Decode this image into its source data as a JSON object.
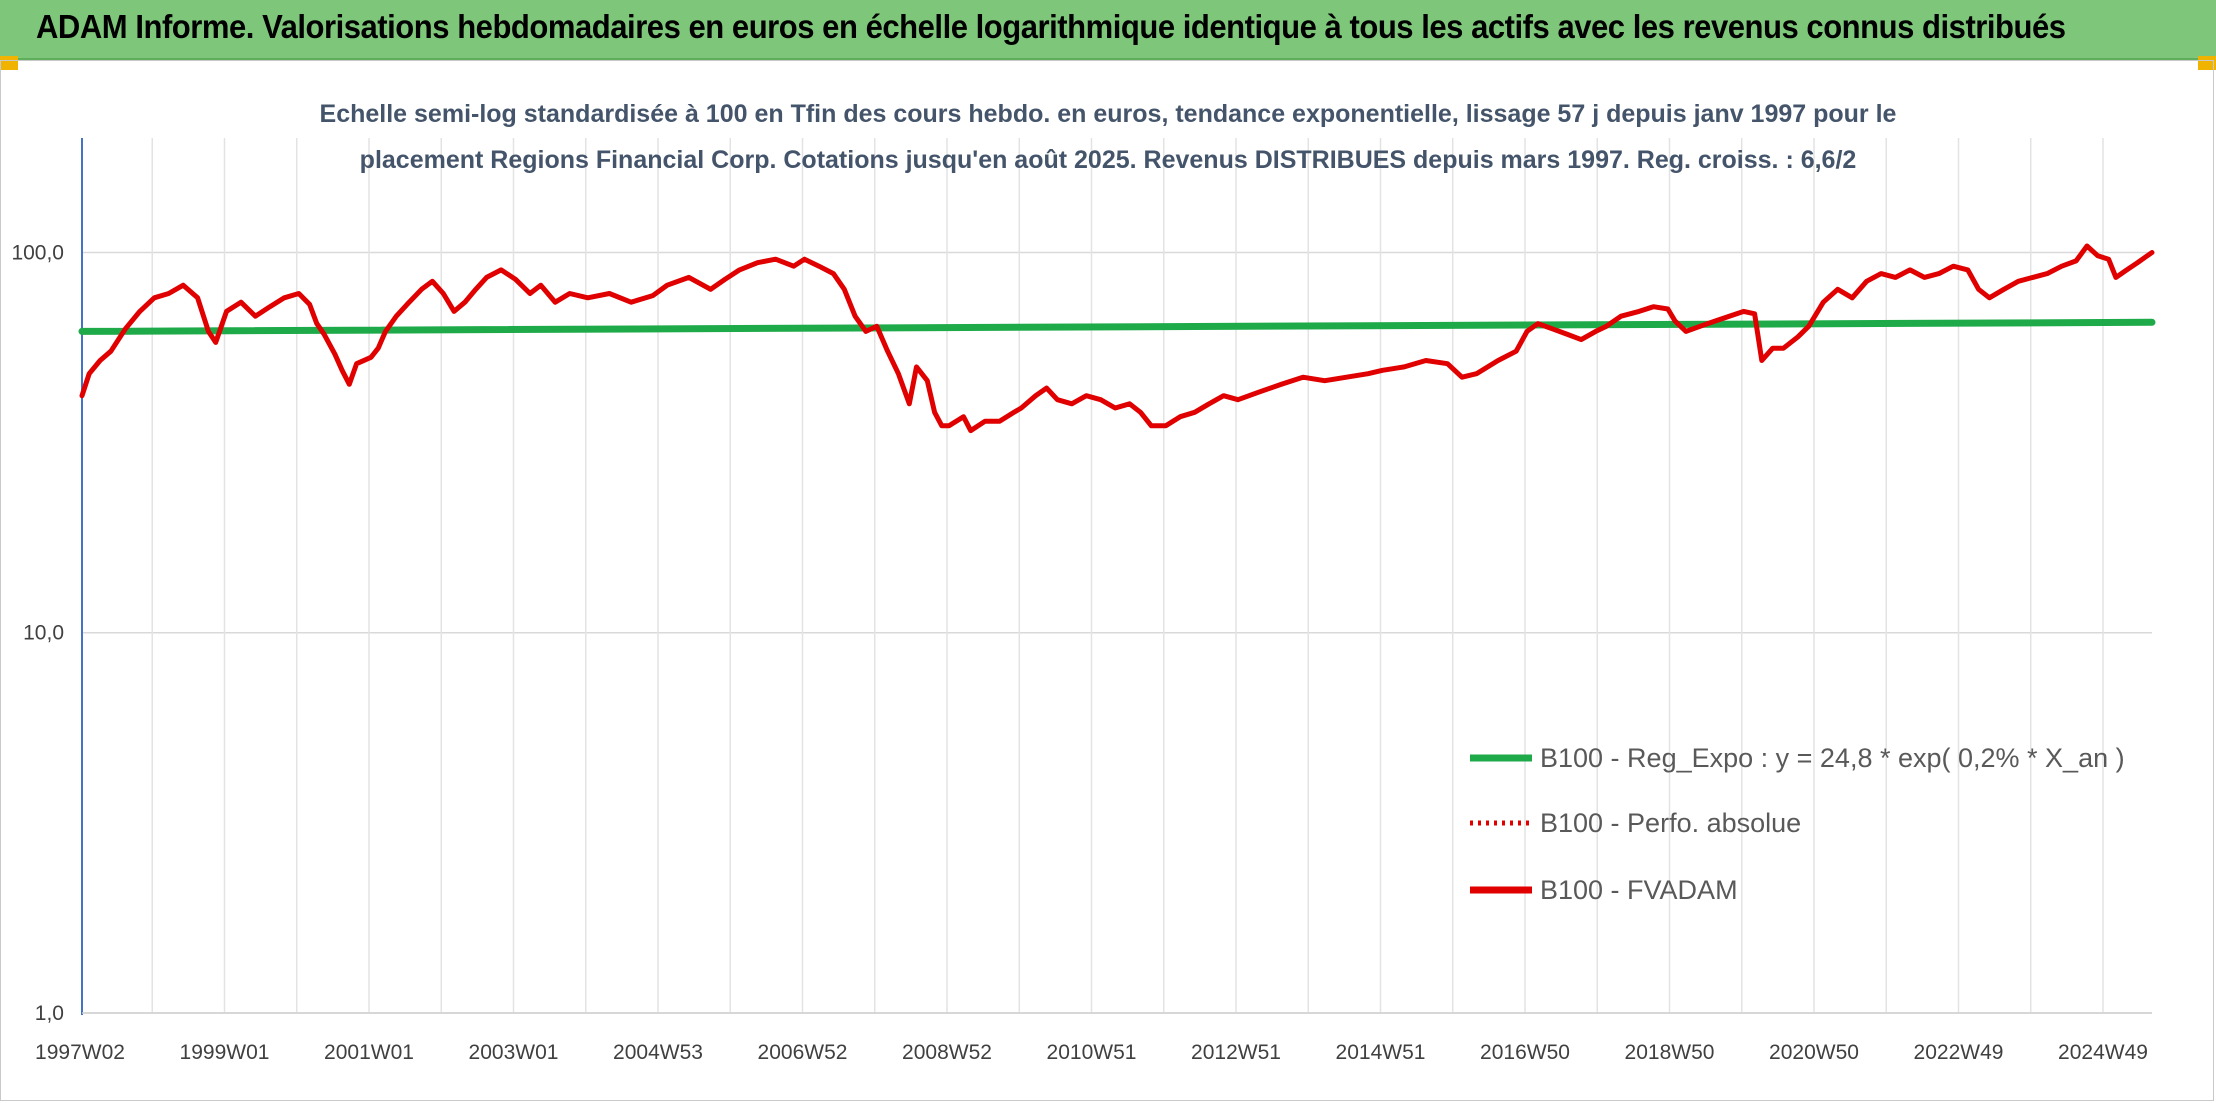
{
  "header": {
    "title": "ADAM Informe. Valorisations hebdomadaires en euros en échelle logarithmique identique à tous les actifs avec les revenus connus distribués",
    "background": "#7ec77a",
    "corner_accent": "#f0b400"
  },
  "chart_data": {
    "type": "line",
    "title_lines": [
      "Echelle semi-log standardisée à 100 en Tfin des cours hebdo. en euros, tendance exponentielle, lissage 57 j depuis janv 1997 pour le",
      "placement Regions Financial Corp. Cotations jusqu'en août 2025. Revenus DISTRIBUES depuis mars 1997. Reg. croiss. : 6,6/2"
    ],
    "y_scale": "log",
    "ylim": [
      1,
      200
    ],
    "y_ticks": [
      {
        "value": 1,
        "label": "1,0"
      },
      {
        "value": 10,
        "label": "10,0"
      },
      {
        "value": 100,
        "label": "100,0"
      }
    ],
    "x_range": [
      1997.0,
      2025.65
    ],
    "x_tick_labels": [
      "1997W02",
      "1999W01",
      "2001W01",
      "2003W01",
      "2004W53",
      "2006W52",
      "2008W52",
      "2010W51",
      "2012W51",
      "2014W51",
      "2016W50",
      "2018W50",
      "2020W50",
      "2022W49",
      "2024W49"
    ],
    "grid": "vertical gridlines between tick labels and horizontal gridlines at 1, 10, 100",
    "legend_position": "bottom-right",
    "series": [
      {
        "name": "B100 - Reg_Expo : y = 24,8 * exp( 0,2% *  X_an )",
        "color": "#1faa4a",
        "style": "solid",
        "points": [
          [
            1997.0,
            62.0
          ],
          [
            2025.65,
            65.5
          ]
        ]
      },
      {
        "name": "B100 - Perfo. absolue",
        "color": "#e00000",
        "style": "dotted",
        "points": []
      },
      {
        "name": "B100 - FVADAM",
        "color": "#e00000",
        "style": "solid",
        "points": [
          [
            1997.0,
            42
          ],
          [
            1997.1,
            48
          ],
          [
            1997.25,
            52
          ],
          [
            1997.4,
            55
          ],
          [
            1997.6,
            63
          ],
          [
            1997.8,
            70
          ],
          [
            1998.0,
            76
          ],
          [
            1998.2,
            78
          ],
          [
            1998.4,
            82
          ],
          [
            1998.6,
            76
          ],
          [
            1998.75,
            62
          ],
          [
            1998.85,
            58
          ],
          [
            1999.0,
            70
          ],
          [
            1999.2,
            74
          ],
          [
            1999.4,
            68
          ],
          [
            1999.6,
            72
          ],
          [
            1999.8,
            76
          ],
          [
            2000.0,
            78
          ],
          [
            2000.15,
            73
          ],
          [
            2000.25,
            65
          ],
          [
            2000.35,
            61
          ],
          [
            2000.5,
            54
          ],
          [
            2000.6,
            49
          ],
          [
            2000.7,
            45
          ],
          [
            2000.8,
            51
          ],
          [
            2001.0,
            53
          ],
          [
            2001.1,
            56
          ],
          [
            2001.2,
            62
          ],
          [
            2001.35,
            68
          ],
          [
            2001.5,
            73
          ],
          [
            2001.7,
            80
          ],
          [
            2001.85,
            84
          ],
          [
            2002.0,
            78
          ],
          [
            2002.15,
            70
          ],
          [
            2002.3,
            74
          ],
          [
            2002.45,
            80
          ],
          [
            2002.6,
            86
          ],
          [
            2002.8,
            90
          ],
          [
            2003.0,
            85
          ],
          [
            2003.2,
            78
          ],
          [
            2003.35,
            82
          ],
          [
            2003.55,
            74
          ],
          [
            2003.75,
            78
          ],
          [
            2004.0,
            76
          ],
          [
            2004.3,
            78
          ],
          [
            2004.6,
            74
          ],
          [
            2004.9,
            77
          ],
          [
            2005.1,
            82
          ],
          [
            2005.4,
            86
          ],
          [
            2005.7,
            80
          ],
          [
            2005.9,
            85
          ],
          [
            2006.1,
            90
          ],
          [
            2006.35,
            94
          ],
          [
            2006.6,
            96
          ],
          [
            2006.85,
            92
          ],
          [
            2007.0,
            96
          ],
          [
            2007.2,
            92
          ],
          [
            2007.4,
            88
          ],
          [
            2007.55,
            80
          ],
          [
            2007.7,
            68
          ],
          [
            2007.85,
            62
          ],
          [
            2008.0,
            64
          ],
          [
            2008.15,
            55
          ],
          [
            2008.3,
            48
          ],
          [
            2008.45,
            40
          ],
          [
            2008.55,
            50
          ],
          [
            2008.7,
            46
          ],
          [
            2008.8,
            38
          ],
          [
            2008.9,
            35
          ],
          [
            2009.0,
            35
          ],
          [
            2009.2,
            37
          ],
          [
            2009.3,
            34
          ],
          [
            2009.5,
            36
          ],
          [
            2009.7,
            36
          ],
          [
            2009.9,
            38
          ],
          [
            2010.0,
            39
          ],
          [
            2010.2,
            42
          ],
          [
            2010.35,
            44
          ],
          [
            2010.5,
            41
          ],
          [
            2010.7,
            40
          ],
          [
            2010.9,
            42
          ],
          [
            2011.1,
            41
          ],
          [
            2011.3,
            39
          ],
          [
            2011.5,
            40
          ],
          [
            2011.65,
            38
          ],
          [
            2011.8,
            35
          ],
          [
            2012.0,
            35
          ],
          [
            2012.2,
            37
          ],
          [
            2012.4,
            38
          ],
          [
            2012.6,
            40
          ],
          [
            2012.8,
            42
          ],
          [
            2013.0,
            41
          ],
          [
            2013.3,
            43
          ],
          [
            2013.6,
            45
          ],
          [
            2013.9,
            47
          ],
          [
            2014.2,
            46
          ],
          [
            2014.5,
            47
          ],
          [
            2014.8,
            48
          ],
          [
            2015.0,
            49
          ],
          [
            2015.3,
            50
          ],
          [
            2015.6,
            52
          ],
          [
            2015.9,
            51
          ],
          [
            2016.1,
            47
          ],
          [
            2016.3,
            48
          ],
          [
            2016.6,
            52
          ],
          [
            2016.85,
            55
          ],
          [
            2017.0,
            62
          ],
          [
            2017.15,
            65
          ],
          [
            2017.35,
            63
          ],
          [
            2017.55,
            61
          ],
          [
            2017.75,
            59
          ],
          [
            2017.95,
            62
          ],
          [
            2018.1,
            64
          ],
          [
            2018.3,
            68
          ],
          [
            2018.55,
            70
          ],
          [
            2018.75,
            72
          ],
          [
            2018.95,
            71
          ],
          [
            2019.05,
            66
          ],
          [
            2019.2,
            62
          ],
          [
            2019.4,
            64
          ],
          [
            2019.6,
            66
          ],
          [
            2019.8,
            68
          ],
          [
            2020.0,
            70
          ],
          [
            2020.15,
            69
          ],
          [
            2020.25,
            52
          ],
          [
            2020.4,
            56
          ],
          [
            2020.55,
            56
          ],
          [
            2020.75,
            60
          ],
          [
            2020.9,
            64
          ],
          [
            2021.1,
            74
          ],
          [
            2021.3,
            80
          ],
          [
            2021.5,
            76
          ],
          [
            2021.7,
            84
          ],
          [
            2021.9,
            88
          ],
          [
            2022.1,
            86
          ],
          [
            2022.3,
            90
          ],
          [
            2022.5,
            86
          ],
          [
            2022.7,
            88
          ],
          [
            2022.9,
            92
          ],
          [
            2023.1,
            90
          ],
          [
            2023.25,
            80
          ],
          [
            2023.4,
            76
          ],
          [
            2023.6,
            80
          ],
          [
            2023.8,
            84
          ],
          [
            2024.0,
            86
          ],
          [
            2024.2,
            88
          ],
          [
            2024.4,
            92
          ],
          [
            2024.6,
            95
          ],
          [
            2024.75,
            104
          ],
          [
            2024.9,
            98
          ],
          [
            2025.05,
            96
          ],
          [
            2025.15,
            86
          ],
          [
            2025.3,
            90
          ],
          [
            2025.45,
            94
          ],
          [
            2025.55,
            97
          ],
          [
            2025.65,
            100
          ]
        ]
      }
    ]
  }
}
